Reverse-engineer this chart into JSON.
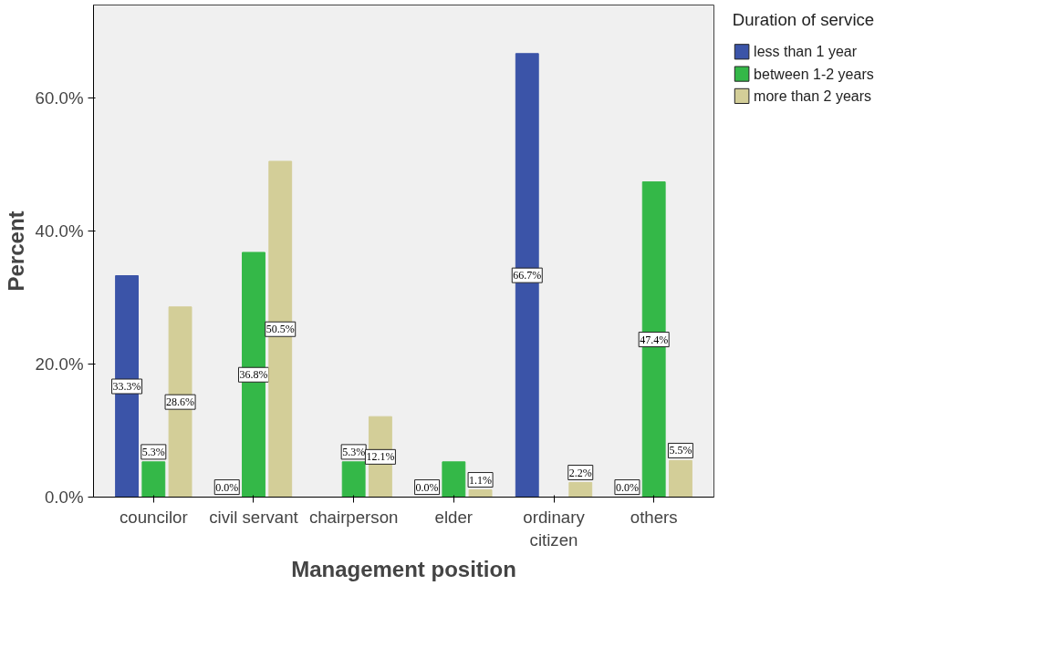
{
  "chart_data": {
    "type": "bar",
    "xlabel": "Management position",
    "ylabel": "Percent",
    "legend_title": "Duration of service",
    "categories": [
      "councilor",
      "civil servant",
      "chairperson",
      "elder",
      "ordinary\ncitizen",
      "others"
    ],
    "series": [
      {
        "name": "less than 1 year",
        "color": "#3b54a8",
        "values": [
          33.3,
          0.0,
          0.0,
          0.0,
          66.7,
          0.0
        ],
        "value_labels": [
          "33.3%",
          "0.0%",
          null,
          "0.0%",
          "66.7%",
          "0.0%"
        ]
      },
      {
        "name": "between 1-2 years",
        "color": "#34b848",
        "values": [
          5.3,
          36.8,
          5.3,
          5.3,
          0.0,
          47.4
        ],
        "value_labels": [
          "5.3%",
          "36.8%",
          "5.3%",
          null,
          null,
          "47.4%"
        ]
      },
      {
        "name": "more than 2 years",
        "color": "#d3ce98",
        "values": [
          28.6,
          50.5,
          12.1,
          1.1,
          2.2,
          5.5
        ],
        "value_labels": [
          "28.6%",
          "50.5%",
          "12.1%",
          "1.1%",
          "2.2%",
          "5.5%"
        ]
      }
    ],
    "ylim": [
      0,
      74
    ],
    "yticks": [
      {
        "value": 0,
        "label": "0.0%"
      },
      {
        "value": 20,
        "label": "20.0%"
      },
      {
        "value": 40,
        "label": "40.0%"
      },
      {
        "value": 60,
        "label": "60.0%"
      }
    ],
    "grid": false,
    "legend": "top right"
  }
}
